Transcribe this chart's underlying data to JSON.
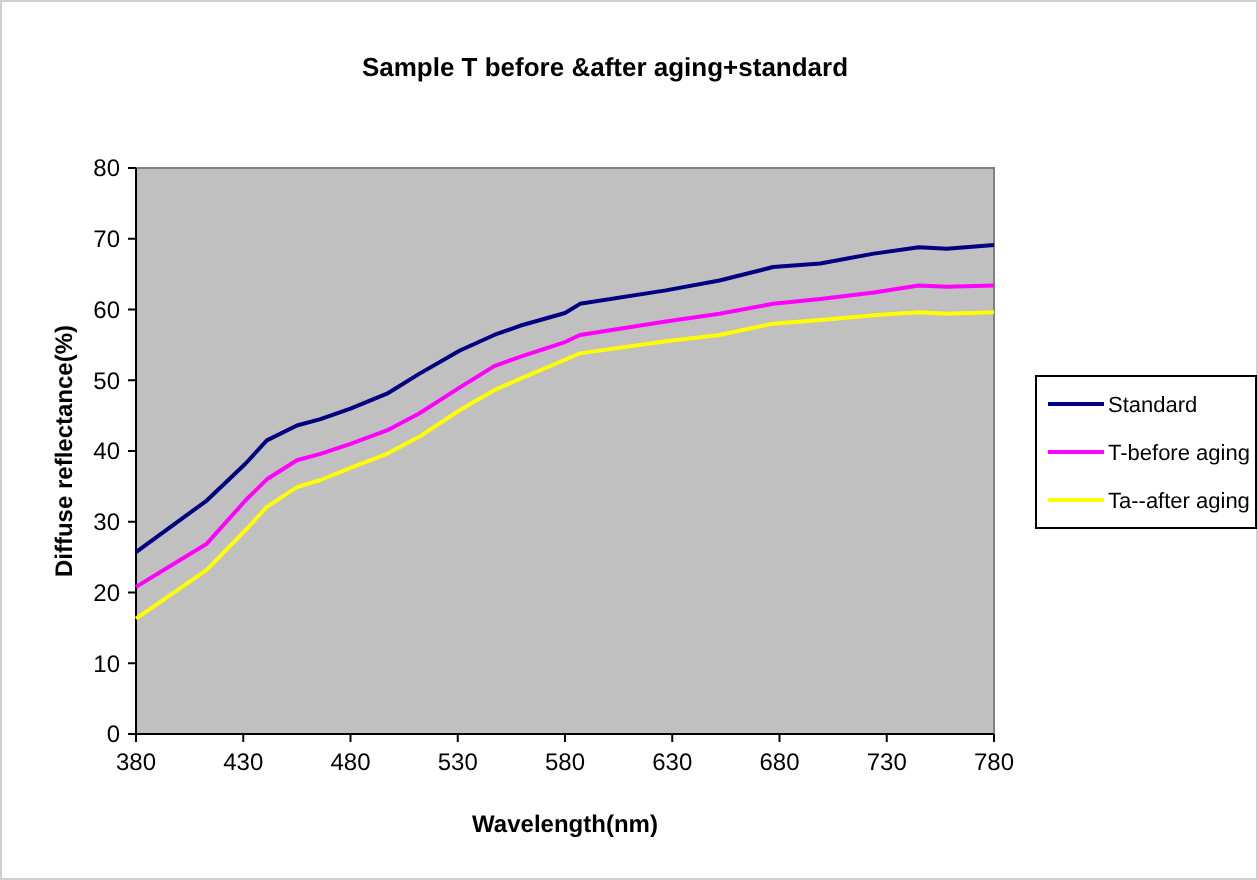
{
  "chart_data": {
    "type": "line",
    "title": "Sample T before &after aging+standard",
    "xlabel": "Wavelength(nm)",
    "ylabel": "Diffuse reflectance(%)",
    "x": [
      380,
      413,
      431,
      441,
      455,
      466,
      480,
      497,
      512,
      531,
      547,
      559,
      580,
      587,
      627,
      652,
      677,
      699,
      724,
      745,
      758,
      780
    ],
    "series": [
      {
        "name": "Standard",
        "color": "#000080",
        "values": [
          25.7,
          33,
          38.2,
          41.5,
          43.6,
          44.5,
          46,
          48.1,
          50.9,
          54.2,
          56.4,
          57.7,
          59.5,
          60.8,
          62.7,
          64.1,
          66,
          66.5,
          67.9,
          68.8,
          68.6,
          69.1
        ]
      },
      {
        "name": "T-before aging",
        "color": "#ff00ff",
        "values": [
          20.8,
          26.9,
          33,
          36,
          38.7,
          39.6,
          41,
          42.9,
          45.3,
          49,
          52,
          53.3,
          55.4,
          56.4,
          58.3,
          59.4,
          60.8,
          61.5,
          62.4,
          63.4,
          63.2,
          63.4
        ]
      },
      {
        "name": "Ta--after aging",
        "color": "#ffff00",
        "values": [
          16.3,
          23.2,
          28.8,
          32.1,
          34.9,
          35.9,
          37.6,
          39.6,
          42,
          45.8,
          48.6,
          50.2,
          52.9,
          53.8,
          55.5,
          56.4,
          58,
          58.5,
          59.2,
          59.6,
          59.4,
          59.6
        ]
      }
    ],
    "xlim": [
      380,
      780
    ],
    "xticks": [
      380,
      430,
      480,
      530,
      580,
      630,
      680,
      730,
      780
    ],
    "ylim": [
      0,
      80
    ],
    "yticks": [
      0,
      10,
      20,
      30,
      40,
      50,
      60,
      70,
      80
    ],
    "legend": "right",
    "marker": "none",
    "line_style": "solid"
  }
}
